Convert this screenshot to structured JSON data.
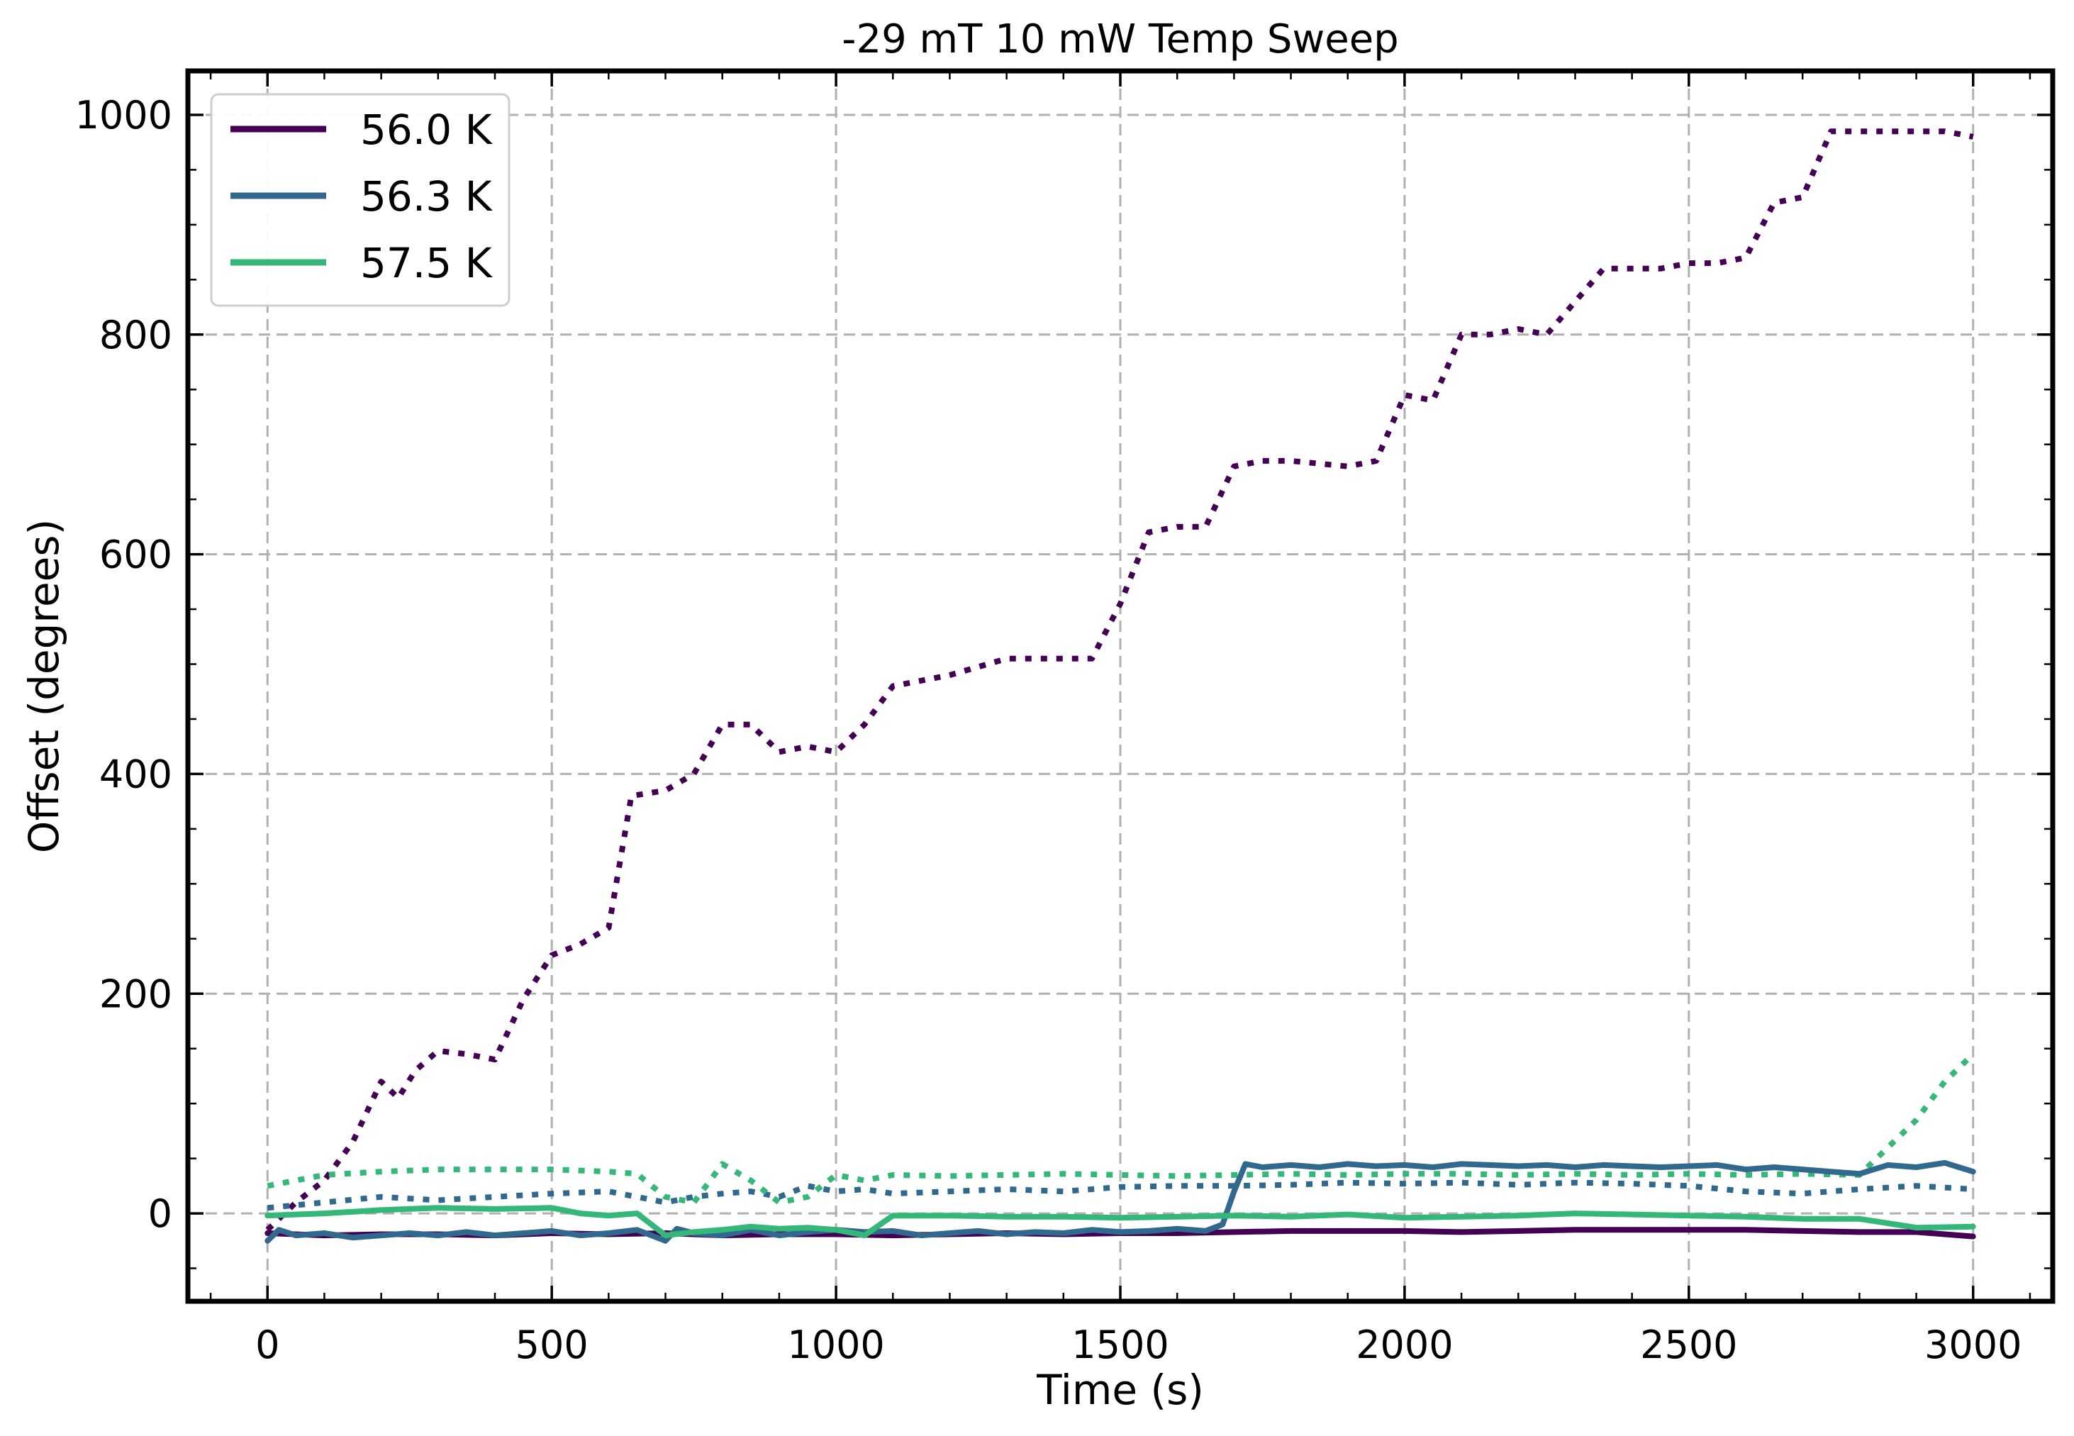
{
  "chart_data": {
    "type": "line",
    "title": "-29 mT 10 mW Temp Sweep",
    "xlabel": "Time (s)",
    "ylabel": "Offset (degrees)",
    "xlim": [
      -140,
      3140
    ],
    "ylim": [
      -80,
      1040
    ],
    "xticks": [
      0,
      500,
      1000,
      1500,
      2000,
      2500,
      3000
    ],
    "yticks": [
      0,
      200,
      400,
      600,
      800,
      1000
    ],
    "xtick_labels": [
      "0",
      "500",
      "1000",
      "1500",
      "2000",
      "2500",
      "3000"
    ],
    "ytick_labels": [
      "0",
      "200",
      "400",
      "600",
      "800",
      "1000"
    ],
    "grid": true,
    "legend_position": "upper-left",
    "legend": [
      "56.0 K",
      "56.3 K",
      "57.5 K"
    ],
    "series": [
      {
        "name": "56.0 K",
        "color": "#440154",
        "style": "solid",
        "x": [
          0,
          100,
          200,
          300,
          400,
          500,
          600,
          700,
          800,
          900,
          1000,
          1100,
          1200,
          1300,
          1400,
          1500,
          1600,
          1700,
          1800,
          1900,
          2000,
          2100,
          2200,
          2300,
          2400,
          2500,
          2600,
          2700,
          2800,
          2900,
          3000
        ],
        "y": [
          -18,
          -20,
          -19,
          -19,
          -20,
          -18,
          -19,
          -18,
          -20,
          -19,
          -19,
          -20,
          -19,
          -18,
          -19,
          -18,
          -18,
          -17,
          -16,
          -16,
          -16,
          -17,
          -16,
          -15,
          -15,
          -15,
          -15,
          -16,
          -17,
          -17,
          -21
        ]
      },
      {
        "name": "56.0 K",
        "color": "#440154",
        "style": "dotted",
        "x": [
          0,
          50,
          100,
          150,
          200,
          230,
          260,
          300,
          350,
          400,
          450,
          500,
          550,
          600,
          640,
          700,
          750,
          800,
          850,
          900,
          950,
          1000,
          1050,
          1100,
          1150,
          1200,
          1300,
          1400,
          1450,
          1500,
          1550,
          1600,
          1650,
          1700,
          1750,
          1800,
          1900,
          1950,
          2000,
          2050,
          2100,
          2150,
          2200,
          2250,
          2300,
          2350,
          2400,
          2450,
          2500,
          2550,
          2600,
          2650,
          2700,
          2750,
          2800,
          2850,
          2900,
          2950,
          3000
        ],
        "y": [
          -15,
          10,
          30,
          65,
          120,
          105,
          130,
          148,
          145,
          140,
          195,
          235,
          245,
          260,
          380,
          385,
          400,
          445,
          445,
          420,
          425,
          420,
          445,
          480,
          485,
          490,
          505,
          505,
          505,
          555,
          620,
          625,
          625,
          680,
          685,
          685,
          680,
          685,
          745,
          740,
          800,
          800,
          805,
          800,
          830,
          860,
          860,
          860,
          865,
          865,
          870,
          920,
          925,
          985,
          985,
          985,
          985,
          985,
          980
        ]
      },
      {
        "name": "56.3 K",
        "color": "#31688e",
        "style": "solid",
        "x": [
          0,
          20,
          50,
          100,
          150,
          200,
          250,
          300,
          350,
          400,
          450,
          500,
          550,
          600,
          650,
          700,
          720,
          750,
          800,
          850,
          900,
          950,
          1000,
          1050,
          1100,
          1150,
          1200,
          1250,
          1300,
          1350,
          1400,
          1450,
          1500,
          1550,
          1600,
          1650,
          1680,
          1700,
          1720,
          1750,
          1800,
          1850,
          1900,
          1950,
          2000,
          2050,
          2100,
          2150,
          2200,
          2250,
          2300,
          2350,
          2400,
          2450,
          2500,
          2550,
          2600,
          2650,
          2700,
          2750,
          2800,
          2850,
          2900,
          2950,
          3000
        ],
        "y": [
          -25,
          -15,
          -20,
          -18,
          -22,
          -20,
          -18,
          -20,
          -17,
          -20,
          -18,
          -16,
          -20,
          -18,
          -15,
          -25,
          -14,
          -18,
          -20,
          -15,
          -20,
          -17,
          -15,
          -17,
          -16,
          -20,
          -18,
          -16,
          -19,
          -17,
          -18,
          -15,
          -17,
          -16,
          -14,
          -16,
          -10,
          20,
          45,
          42,
          44,
          42,
          45,
          43,
          44,
          42,
          45,
          44,
          43,
          44,
          42,
          44,
          43,
          42,
          43,
          44,
          40,
          42,
          40,
          38,
          36,
          44,
          42,
          46,
          38
        ]
      },
      {
        "name": "56.3 K",
        "color": "#31688e",
        "style": "dotted",
        "x": [
          0,
          100,
          200,
          300,
          400,
          500,
          600,
          700,
          750,
          800,
          850,
          900,
          950,
          1000,
          1050,
          1100,
          1200,
          1300,
          1400,
          1500,
          1600,
          1700,
          1800,
          1900,
          2000,
          2100,
          2200,
          2300,
          2400,
          2500,
          2600,
          2700,
          2800,
          2900,
          3000
        ],
        "y": [
          5,
          10,
          15,
          12,
          15,
          18,
          20,
          10,
          15,
          18,
          20,
          15,
          25,
          20,
          22,
          18,
          20,
          22,
          20,
          24,
          25,
          25,
          26,
          28,
          27,
          28,
          26,
          28,
          27,
          25,
          20,
          18,
          22,
          25,
          22
        ]
      },
      {
        "name": "57.5 K",
        "color": "#35b779",
        "style": "solid",
        "x": [
          0,
          100,
          200,
          300,
          400,
          500,
          550,
          600,
          650,
          700,
          750,
          800,
          850,
          900,
          950,
          1000,
          1050,
          1100,
          1200,
          1300,
          1400,
          1500,
          1600,
          1700,
          1800,
          1900,
          2000,
          2100,
          2200,
          2300,
          2400,
          2500,
          2600,
          2700,
          2800,
          2900,
          3000
        ],
        "y": [
          -2,
          0,
          3,
          5,
          4,
          5,
          0,
          -2,
          0,
          -20,
          -17,
          -15,
          -12,
          -14,
          -13,
          -15,
          -20,
          -2,
          -2,
          -3,
          -3,
          -4,
          -3,
          -2,
          -3,
          -1,
          -4,
          -3,
          -2,
          0,
          -1,
          -2,
          -3,
          -5,
          -5,
          -13,
          -12
        ]
      },
      {
        "name": "57.5 K",
        "color": "#35b779",
        "style": "dotted",
        "x": [
          0,
          100,
          200,
          300,
          400,
          500,
          600,
          650,
          700,
          750,
          800,
          850,
          900,
          950,
          1000,
          1050,
          1100,
          1200,
          1300,
          1400,
          1500,
          1600,
          1700,
          1800,
          1900,
          2000,
          2100,
          2200,
          2300,
          2400,
          2500,
          2600,
          2700,
          2800,
          2850,
          2900,
          2950,
          3000
        ],
        "y": [
          25,
          35,
          38,
          40,
          40,
          40,
          38,
          36,
          15,
          10,
          45,
          30,
          10,
          15,
          35,
          30,
          35,
          34,
          35,
          36,
          35,
          34,
          35,
          36,
          35,
          36,
          36,
          35,
          36,
          35,
          36,
          35,
          36,
          35,
          60,
          85,
          120,
          145
        ]
      }
    ]
  }
}
